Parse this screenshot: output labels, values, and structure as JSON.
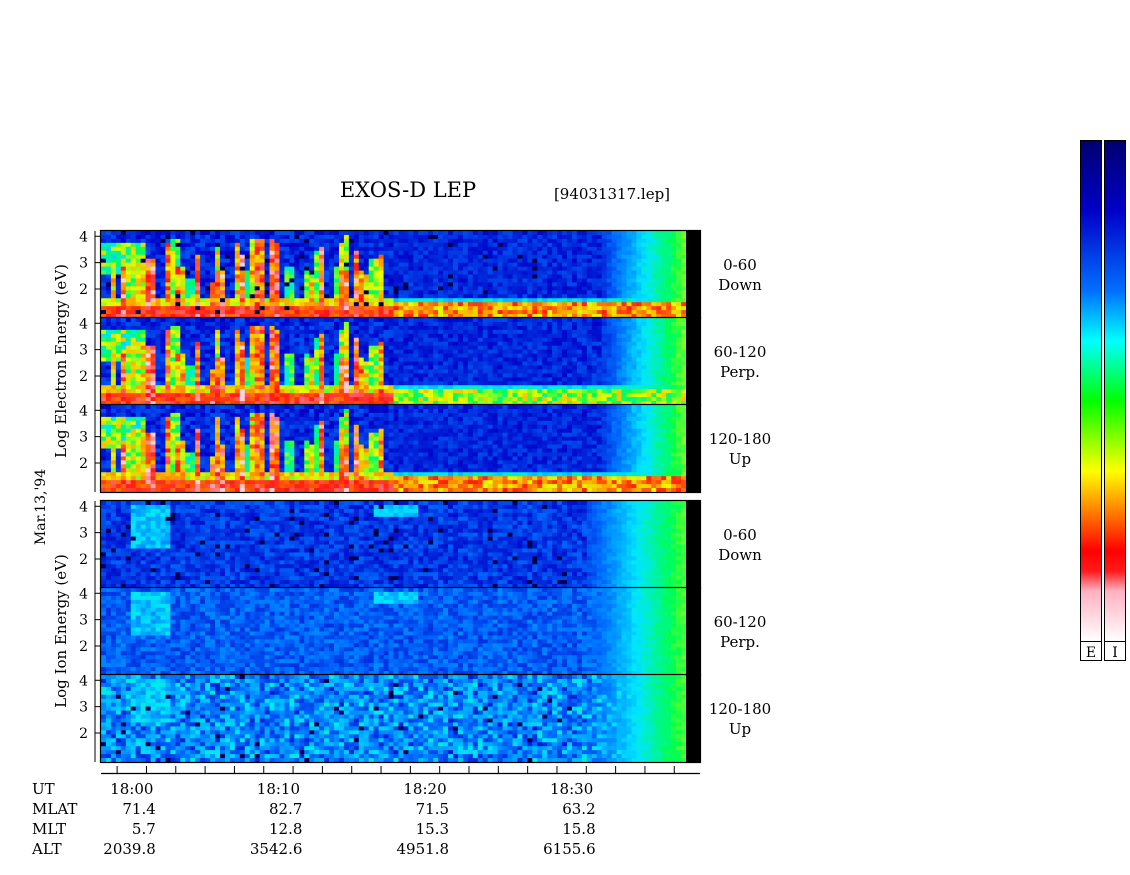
{
  "header": {
    "title": "EXOS-D LEP",
    "file_label": "[94031317.lep]"
  },
  "side_date_label": "Mar.13,'94",
  "colorbar_labels": [
    "E",
    "I"
  ],
  "colorbar_colors": [
    "#ffffff",
    "#ffd0d8",
    "#ff1010",
    "#ff8000",
    "#ffff00",
    "#00ff00",
    "#00ffff",
    "#0066ff",
    "#00009a",
    "#000070"
  ],
  "chart_data": {
    "type": "heatmap",
    "title": "EXOS-D LEP",
    "x_ticks": [
      "18:00",
      "18:10",
      "18:20",
      "18:30"
    ],
    "x_tick_minutes": [
      0,
      10,
      20,
      30
    ],
    "x_range_minutes": [
      -2.1,
      37.8
    ],
    "y_range": [
      0.9,
      4.2
    ],
    "y_ticks": [
      "2",
      "3",
      "4"
    ],
    "y_tick_values": [
      2,
      3,
      4
    ],
    "electron_axis_label": "Log  Electron  Energy (eV)",
    "ion_axis_label": "Log  Ion  Energy (eV)",
    "panels": [
      {
        "species": "electron",
        "label1": "0-60",
        "label2": "Down"
      },
      {
        "species": "electron",
        "label1": "60-120",
        "label2": "Perp."
      },
      {
        "species": "electron",
        "label1": "120-180",
        "label2": "Up"
      },
      {
        "species": "ion",
        "label1": "0-60",
        "label2": "Down"
      },
      {
        "species": "ion",
        "label1": "60-120",
        "label2": "Perp."
      },
      {
        "species": "ion",
        "label1": "120-180",
        "label2": "Up"
      }
    ],
    "ephemeris": {
      "labels": [
        "UT",
        "MLAT",
        "MLT",
        "ALT"
      ],
      "rows": [
        [
          "18:00",
          "18:10",
          "18:20",
          "18:30"
        ],
        [
          "71.4",
          "82.7",
          "71.5",
          "63.2"
        ],
        [
          "5.7",
          "12.8",
          "15.3",
          "15.8"
        ],
        [
          "2039.8",
          "3542.6",
          "4951.8",
          "6155.6"
        ]
      ]
    }
  }
}
